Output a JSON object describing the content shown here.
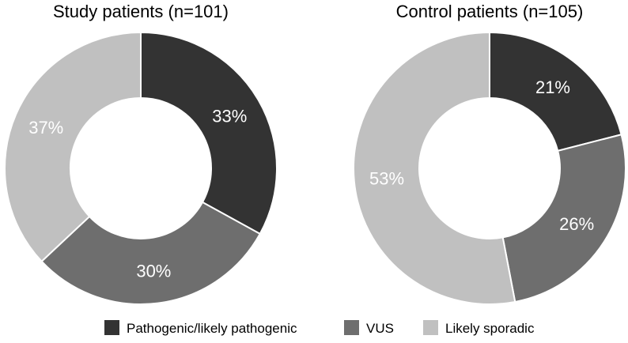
{
  "chart_data": [
    {
      "type": "pie",
      "variant": "donut",
      "title": "Study patients (n=101)",
      "categories": [
        "Pathogenic/likely pathogenic",
        "VUS",
        "Likely sporadic"
      ],
      "values": [
        33,
        30,
        37
      ],
      "labels": [
        "33%",
        "30%",
        "37%"
      ],
      "unit": "%"
    },
    {
      "type": "pie",
      "variant": "donut",
      "title": "Control patients (n=105)",
      "categories": [
        "Pathogenic/likely pathogenic",
        "VUS",
        "Likely sporadic"
      ],
      "values": [
        21,
        26,
        53
      ],
      "labels": [
        "21%",
        "26%",
        "53%"
      ],
      "unit": "%"
    }
  ],
  "legend": {
    "position": "bottom",
    "items": [
      {
        "label": "Pathogenic/likely pathogenic",
        "color": "#333333"
      },
      {
        "label": "VUS",
        "color": "#6e6e6e"
      },
      {
        "label": "Likely sporadic",
        "color": "#c0c0c0"
      }
    ]
  },
  "colors": [
    "#333333",
    "#6e6e6e",
    "#c0c0c0"
  ]
}
